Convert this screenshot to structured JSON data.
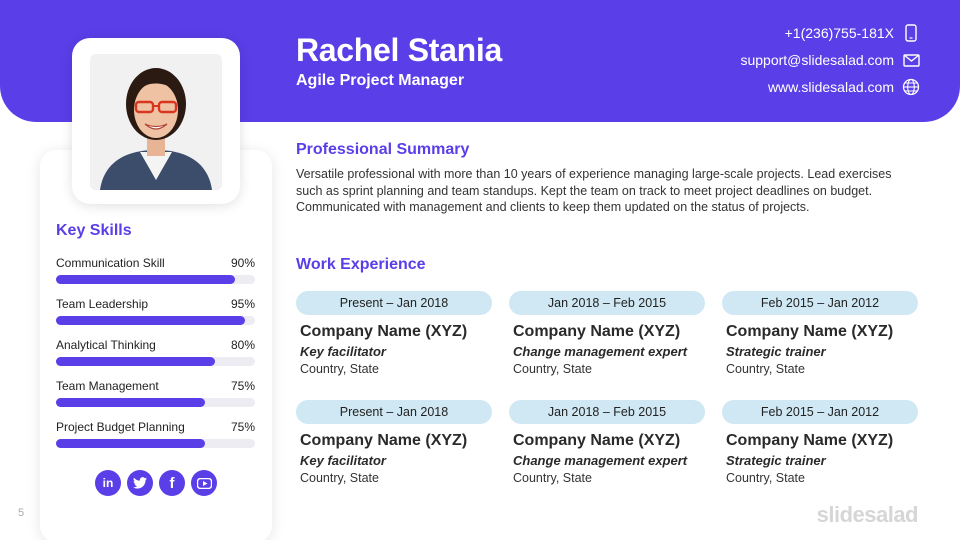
{
  "header": {
    "name": "Rachel Stania",
    "role": "Agile Project Manager",
    "phone": "+1(236)755-181X",
    "email": "support@slidesalad.com",
    "website": "www.slidesalad.com"
  },
  "skills": {
    "title": "Key Skills",
    "items": [
      {
        "label": "Communication Skill",
        "percent_text": "90%",
        "value": 0.9
      },
      {
        "label": "Team Leadership",
        "percent_text": "95%",
        "value": 0.95
      },
      {
        "label": "Analytical Thinking",
        "percent_text": "80%",
        "value": 0.8
      },
      {
        "label": "Team Management",
        "percent_text": "75%",
        "value": 0.75
      },
      {
        "label": "Project Budget Planning",
        "percent_text": "75%",
        "value": 0.75
      }
    ]
  },
  "social": [
    "linkedin-icon",
    "twitter-icon",
    "facebook-icon",
    "youtube-icon"
  ],
  "summary": {
    "title": "Professional Summary",
    "text": "Versatile professional with more than 10 years of experience managing large-scale projects. Lead exercises such as sprint planning and team standups. Kept the team on track to meet project deadlines on budget. Communicated with management and clients to keep them updated on the status of projects."
  },
  "experience": {
    "title": "Work Experience",
    "jobs": [
      {
        "date": "Present – Jan 2018",
        "company": "Company Name (XYZ)",
        "title": "Key facilitator",
        "location": "Country, State"
      },
      {
        "date": "Jan 2018 – Feb 2015",
        "company": "Company Name (XYZ)",
        "title": "Change management expert",
        "location": "Country, State"
      },
      {
        "date": "Feb 2015 – Jan 2012",
        "company": "Company Name (XYZ)",
        "title": "Strategic trainer",
        "location": "Country, State"
      },
      {
        "date": "Present – Jan 2018",
        "company": "Company Name (XYZ)",
        "title": "Key facilitator",
        "location": "Country, State"
      },
      {
        "date": "Jan 2018 – Feb 2015",
        "company": "Company Name (XYZ)",
        "title": "Change management expert",
        "location": "Country, State"
      },
      {
        "date": "Feb 2015 – Jan 2012",
        "company": "Company Name (XYZ)",
        "title": "Strategic trainer",
        "location": "Country, State"
      }
    ]
  },
  "footer": {
    "page_number": "5",
    "brand": "slidesalad"
  },
  "colors": {
    "accent": "#5a3ee8",
    "date_pill": "#cfe8f3"
  }
}
